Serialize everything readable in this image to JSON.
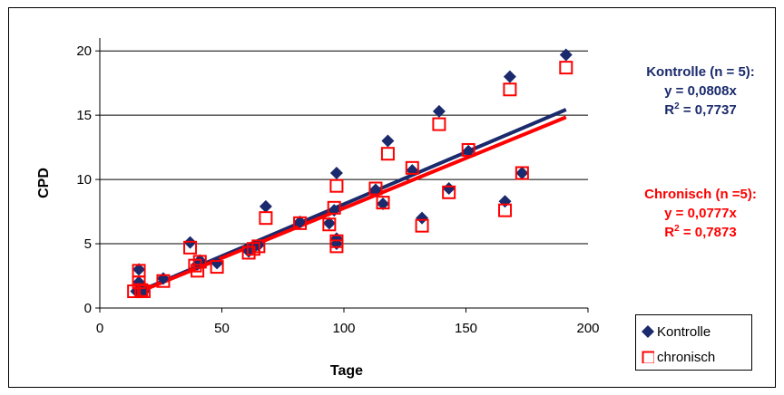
{
  "chart_data": {
    "type": "scatter",
    "title": "",
    "xlabel": "Tage",
    "ylabel": "CPD",
    "xlim": [
      0,
      200
    ],
    "ylim": [
      0,
      21
    ],
    "x_ticks": [
      "0",
      "50",
      "100",
      "150",
      "200"
    ],
    "y_ticks": [
      "0",
      "5",
      "10",
      "15",
      "20"
    ],
    "grid": "horizontal",
    "legend_position": "bottom-right",
    "series": [
      {
        "name": "Kontrolle",
        "marker": "diamond-filled",
        "color": "#1a2a6c",
        "points": [
          [
            15,
            1.3
          ],
          [
            16,
            2.0
          ],
          [
            16,
            3.0
          ],
          [
            17,
            1.5
          ],
          [
            18,
            1.3
          ],
          [
            26,
            2.3
          ],
          [
            37,
            5.1
          ],
          [
            40,
            3.4
          ],
          [
            41,
            3.7
          ],
          [
            48,
            3.5
          ],
          [
            61,
            4.4
          ],
          [
            63,
            4.7
          ],
          [
            65,
            4.9
          ],
          [
            68,
            7.9
          ],
          [
            82,
            6.7
          ],
          [
            94,
            6.6
          ],
          [
            96,
            7.6
          ],
          [
            97,
            5.0
          ],
          [
            97,
            5.4
          ],
          [
            97,
            10.5
          ],
          [
            113,
            9.2
          ],
          [
            116,
            8.1
          ],
          [
            118,
            13.0
          ],
          [
            128,
            10.7
          ],
          [
            132,
            7.0
          ],
          [
            139,
            15.3
          ],
          [
            143,
            9.3
          ],
          [
            151,
            12.2
          ],
          [
            166,
            8.3
          ],
          [
            168,
            18.0
          ],
          [
            173,
            10.5
          ],
          [
            191,
            19.7
          ]
        ],
        "trendline": {
          "slope": 0.0808,
          "x_range": [
            15,
            191
          ]
        }
      },
      {
        "name": "chronisch",
        "marker": "square-open",
        "color": "#ff0000",
        "points": [
          [
            14,
            1.3
          ],
          [
            16,
            2.9
          ],
          [
            16,
            2.0
          ],
          [
            17,
            1.4
          ],
          [
            18,
            1.3
          ],
          [
            26,
            2.1
          ],
          [
            37,
            4.7
          ],
          [
            39,
            3.3
          ],
          [
            40,
            2.9
          ],
          [
            41,
            3.6
          ],
          [
            48,
            3.2
          ],
          [
            61,
            4.3
          ],
          [
            63,
            4.6
          ],
          [
            65,
            4.8
          ],
          [
            68,
            7.0
          ],
          [
            82,
            6.6
          ],
          [
            94,
            6.5
          ],
          [
            96,
            7.8
          ],
          [
            97,
            4.8
          ],
          [
            97,
            5.2
          ],
          [
            97,
            9.5
          ],
          [
            113,
            9.3
          ],
          [
            116,
            8.2
          ],
          [
            118,
            12.0
          ],
          [
            128,
            10.9
          ],
          [
            132,
            6.4
          ],
          [
            139,
            14.3
          ],
          [
            143,
            9.0
          ],
          [
            151,
            12.3
          ],
          [
            166,
            7.6
          ],
          [
            168,
            17.0
          ],
          [
            173,
            10.5
          ],
          [
            191,
            18.7
          ]
        ],
        "trendline": {
          "slope": 0.0777,
          "x_range": [
            15,
            191
          ]
        }
      }
    ]
  },
  "annotations": {
    "kontrolle": {
      "line1": "Kontrolle (n = 5):",
      "line2": "y = 0,0808x",
      "r2_prefix": "R",
      "r2_sup": "2",
      "r2_value": " = 0,7737",
      "color": "#1a2a6c"
    },
    "chronisch": {
      "line1": "Chronisch (n =5):",
      "line2": "y = 0,0777x",
      "r2_prefix": "R",
      "r2_sup": "2",
      "r2_value": " = 0,7873",
      "color": "#ff0000"
    }
  },
  "legend": {
    "kontrolle_label": "Kontrolle",
    "chronisch_label": "chronisch"
  }
}
